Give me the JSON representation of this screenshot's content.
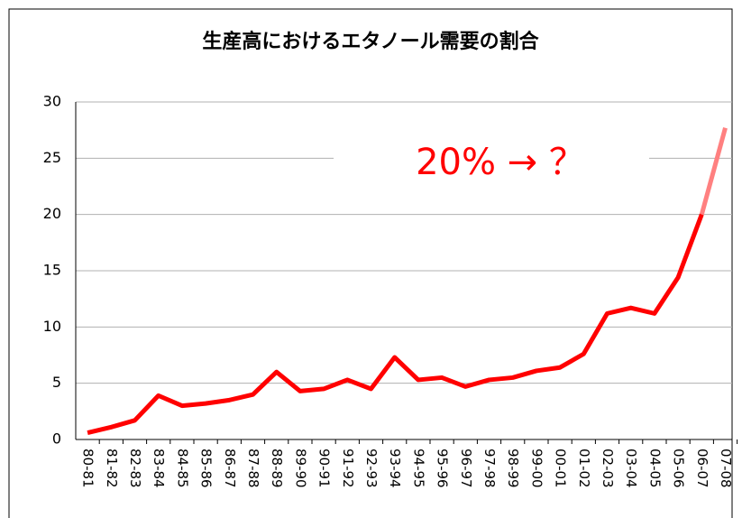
{
  "chart_data": {
    "type": "line",
    "title": "生産高におけるエタノール需要の割合",
    "annotation": "20% → ？",
    "categories": [
      "80-81",
      "81-82",
      "82-83",
      "83-84",
      "84-85",
      "85-86",
      "86-87",
      "87-88",
      "88-89",
      "89-90",
      "90-91",
      "91-92",
      "92-93",
      "93-94",
      "94-95",
      "95-96",
      "96-97",
      "97-98",
      "98-99",
      "99-00",
      "00-01",
      "01-02",
      "02-03",
      "03-04",
      "04-05",
      "05-06",
      "06-07",
      "07-08"
    ],
    "values": [
      0.6,
      1.1,
      1.7,
      3.9,
      3.0,
      3.2,
      3.5,
      4.0,
      6.0,
      4.3,
      4.5,
      5.3,
      4.5,
      7.3,
      5.3,
      5.5,
      4.7,
      5.3,
      5.5,
      6.1,
      6.4,
      7.6,
      11.2,
      11.7,
      11.2,
      14.4,
      20.0,
      27.7
    ],
    "color": "#ff0000",
    "forecast_color": "#ff8080",
    "forecast_start": 26,
    "ylim": [
      0,
      30
    ],
    "yticks": [
      0,
      5,
      10,
      15,
      20,
      25,
      30
    ],
    "grid": true
  }
}
